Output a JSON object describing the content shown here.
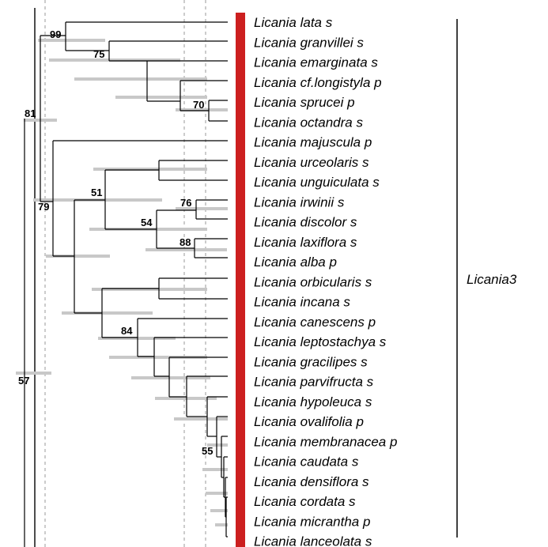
{
  "taxa": [
    "Licania lata s",
    "Licania granvillei s",
    "Licania emarginata s",
    "Licania cf.longistyla p",
    "Licania sprucei p",
    "Licania octandra s",
    "Licania majuscula p",
    "Licania urceolaris s",
    "Licania unguiculata s",
    "Licania irwinii s",
    "Licania discolor s",
    "Licania laxiflora s",
    "Licania alba p",
    "Licania orbicularis s",
    "Licania incana s",
    "Licania canescens p",
    "Licania leptostachya s",
    "Licania gracilipes s",
    "Licania parvifructa s",
    "Licania hypoleuca s",
    "Licania ovalifolia p",
    "Licania membranacea p",
    "Licania caudata s",
    "Licania densiflora s",
    "Licania cordata s",
    "Licania micrantha p",
    "Licania lanceolata s"
  ],
  "support_values": [
    "99",
    "75",
    "70",
    "81",
    "79",
    "51",
    "76",
    "54",
    "88",
    "84",
    "55",
    "57"
  ],
  "clade_label": "Licania3",
  "colors": {
    "highlight_bar": "#cc1f1f",
    "error_bar": "#c8c8c8",
    "branch": "#000000",
    "guide_line": "#9a9a9a"
  }
}
